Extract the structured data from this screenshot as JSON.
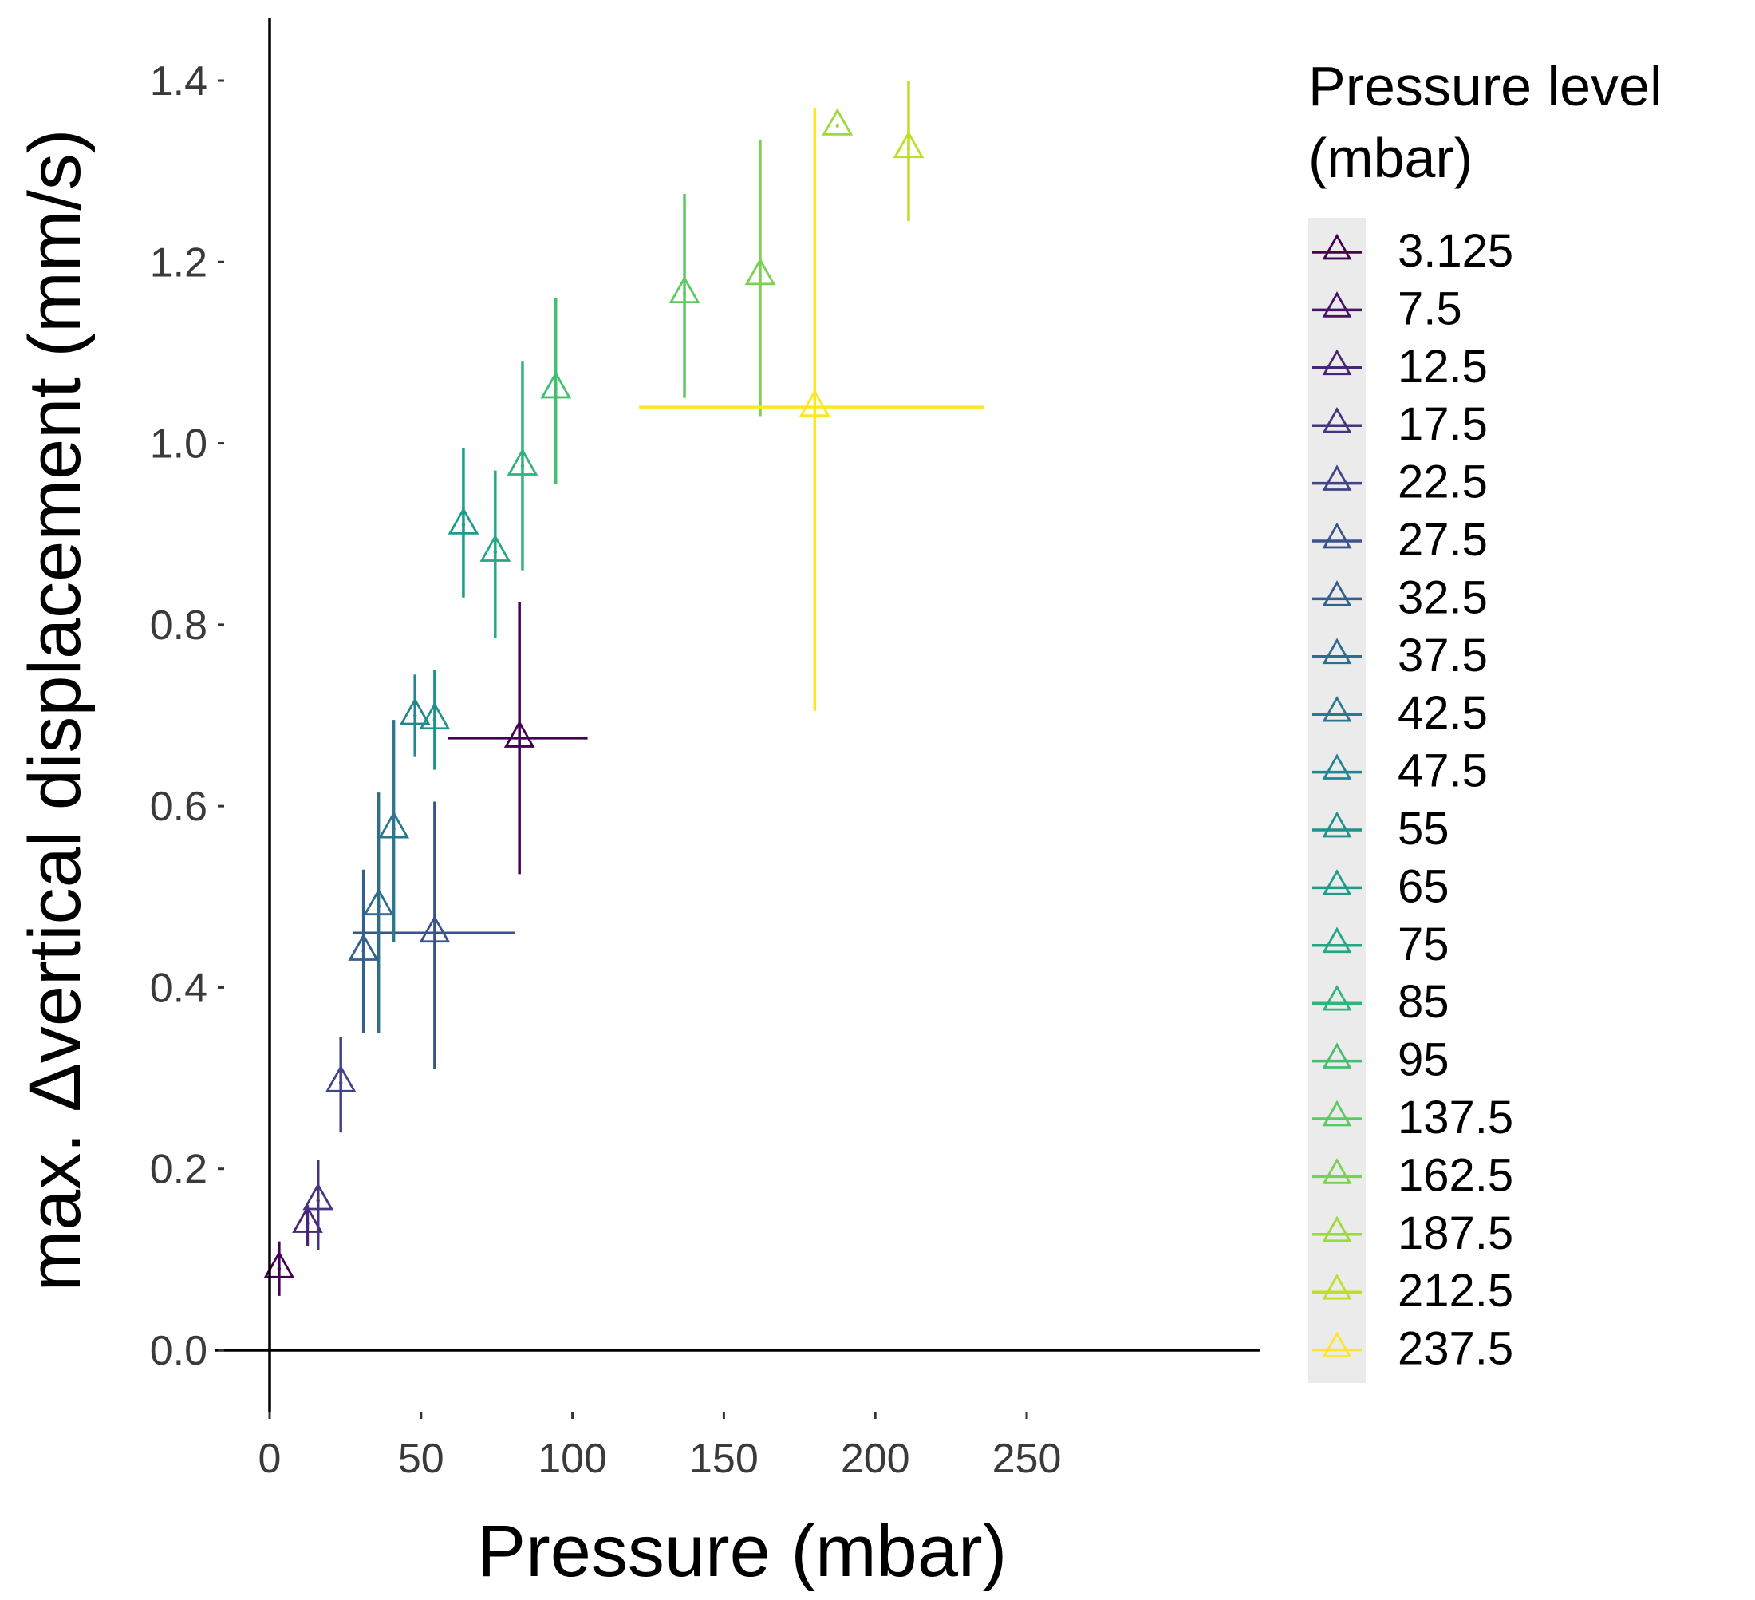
{
  "chart_data": {
    "type": "scatter",
    "xlabel": "Pressure (mbar)",
    "ylabel": "max. Δvertical displacement (mm/s)",
    "xlim": [
      -15,
      262
    ],
    "ylim": [
      -0.08,
      1.47
    ],
    "x_ticks": [
      0,
      50,
      100,
      150,
      200,
      250
    ],
    "y_ticks": [
      0.0,
      0.2,
      0.4,
      0.6,
      0.8,
      1.0,
      1.2,
      1.4
    ],
    "x_tick_labels": [
      "0",
      "50",
      "100",
      "150",
      "200",
      "250"
    ],
    "y_tick_labels": [
      "0.0",
      "0.2",
      "0.4",
      "0.6",
      "0.8",
      "1.0",
      "1.2",
      "1.4"
    ],
    "grid": false,
    "legend": {
      "title": "Pressure level\n(mbar)",
      "placement": "right"
    },
    "series": [
      {
        "name": "3.125",
        "color": "#440154",
        "x": 3.125,
        "y": 0.09,
        "ymin": 0.06,
        "ymax": 0.12
      },
      {
        "name": "7.5",
        "color": "#481467",
        "x": null,
        "y": null
      },
      {
        "name": "12.5",
        "color": "#482576",
        "x": 12.5,
        "y": 0.14,
        "ymin": 0.115,
        "ymax": 0.16
      },
      {
        "name": "17.5",
        "color": "#463480",
        "x": 16,
        "y": 0.165,
        "ymin": 0.11,
        "ymax": 0.21
      },
      {
        "name": "22.5",
        "color": "#414487",
        "x": 23.5,
        "y": 0.295,
        "ymin": 0.24,
        "ymax": 0.345
      },
      {
        "name": "27.5",
        "color": "#3b528b",
        "x": 54.5,
        "y": 0.46,
        "ymin": 0.31,
        "ymax": 0.605,
        "xmin": 27.5,
        "xmax": 81
      },
      {
        "name": "32.5",
        "color": "#355f8d",
        "x": 31,
        "y": 0.44,
        "ymin": 0.35,
        "ymax": 0.53
      },
      {
        "name": "37.5",
        "color": "#2f6c8e",
        "x": 36,
        "y": 0.49,
        "ymin": 0.35,
        "ymax": 0.615
      },
      {
        "name": "42.5",
        "color": "#2a788e",
        "x": 41,
        "y": 0.575,
        "ymin": 0.45,
        "ymax": 0.695
      },
      {
        "name": "47.5",
        "color": "#25858e",
        "x": 48,
        "y": 0.7,
        "ymin": 0.655,
        "ymax": 0.745
      },
      {
        "name": "55",
        "color": "#21918c",
        "x": 54.5,
        "y": 0.695,
        "ymin": 0.64,
        "ymax": 0.75
      },
      {
        "name": "65",
        "color": "#1e9c89",
        "x": 64,
        "y": 0.91,
        "ymin": 0.83,
        "ymax": 0.995
      },
      {
        "name": "75",
        "color": "#22a884",
        "x": 74.5,
        "y": 0.88,
        "ymin": 0.785,
        "ymax": 0.97
      },
      {
        "name": "85",
        "color": "#2fb47c",
        "x": 83.5,
        "y": 0.975,
        "ymin": 0.86,
        "ymax": 1.09
      },
      {
        "name": "95",
        "color": "#44bf70",
        "x": 94.5,
        "y": 1.06,
        "ymin": 0.955,
        "ymax": 1.16
      },
      {
        "name": "137.5",
        "color": "#5ec962",
        "x": 137,
        "y": 1.165,
        "ymin": 1.05,
        "ymax": 1.275
      },
      {
        "name": "162.5",
        "color": "#7ad151",
        "x": 162,
        "y": 1.185,
        "ymin": 1.03,
        "ymax": 1.335
      },
      {
        "name": "187.5",
        "color": "#9bd93c",
        "x": 187.5,
        "y": 1.35,
        "ymin": null,
        "ymax": null
      },
      {
        "name": "212.5",
        "color": "#bddf26",
        "x": 211,
        "y": 1.325,
        "ymin": 1.245,
        "ymax": 1.4
      },
      {
        "name": "237.5",
        "color": "#fde725",
        "x": 180,
        "y": 1.04,
        "ymin": 0.705,
        "ymax": 1.37,
        "xmin": 122,
        "xmax": 236
      }
    ],
    "extra_marks": [
      {
        "series": "3.125",
        "x": 82.5,
        "y": 0.675,
        "ymin": 0.525,
        "ymax": 0.825,
        "xmin": 59,
        "xmax": 105
      }
    ]
  }
}
